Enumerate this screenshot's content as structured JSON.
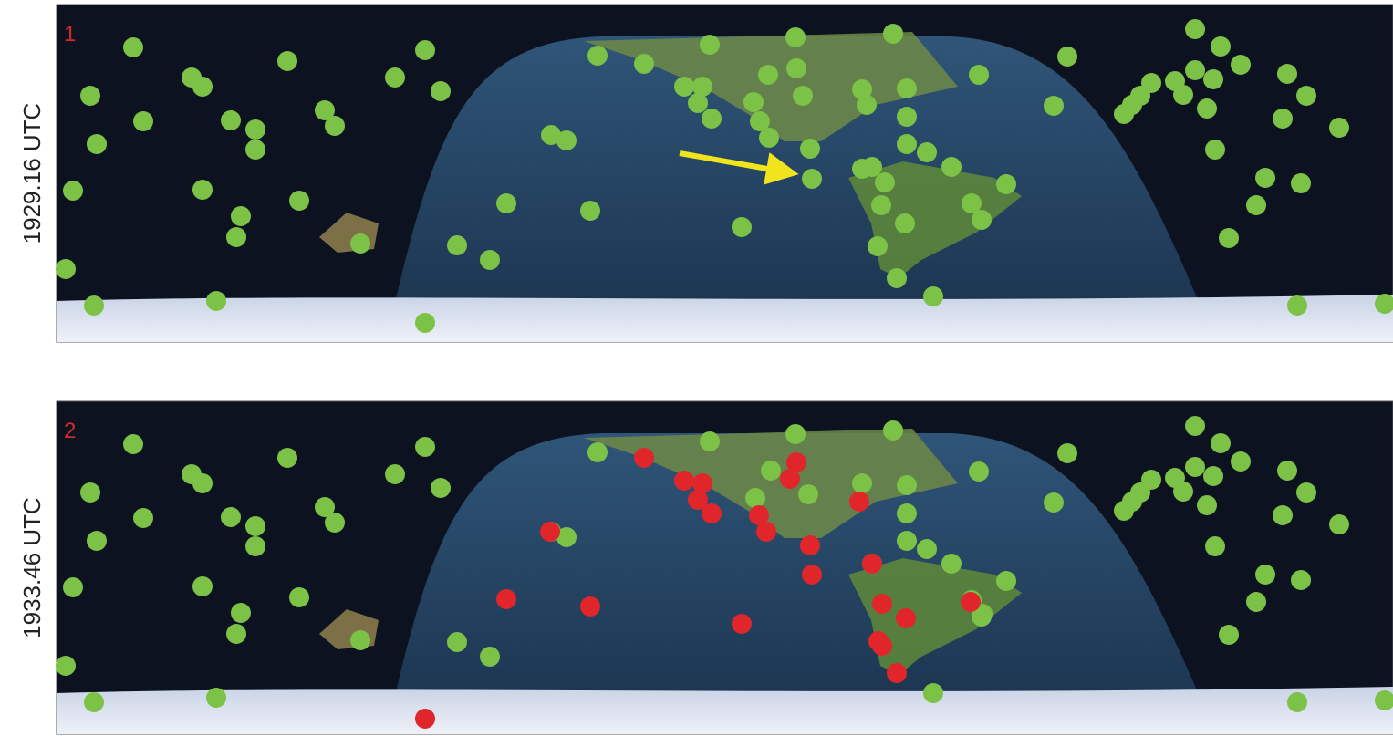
{
  "panels": [
    {
      "number": "1",
      "time": "1929.16 UTC"
    },
    {
      "number": "2",
      "time": "1933.46 UTC"
    }
  ]
}
